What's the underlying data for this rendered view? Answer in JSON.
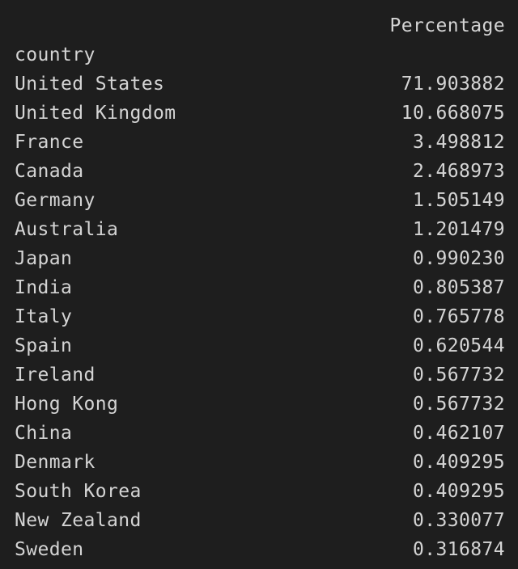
{
  "table": {
    "column_header": "Percentage",
    "index_name": "country",
    "rows": [
      {
        "country": "United States",
        "value": "71.903882"
      },
      {
        "country": "United Kingdom",
        "value": "10.668075"
      },
      {
        "country": "France",
        "value": "3.498812"
      },
      {
        "country": "Canada",
        "value": "2.468973"
      },
      {
        "country": "Germany",
        "value": "1.505149"
      },
      {
        "country": "Australia",
        "value": "1.201479"
      },
      {
        "country": "Japan",
        "value": "0.990230"
      },
      {
        "country": "India",
        "value": "0.805387"
      },
      {
        "country": "Italy",
        "value": "0.765778"
      },
      {
        "country": "Spain",
        "value": "0.620544"
      },
      {
        "country": "Ireland",
        "value": "0.567732"
      },
      {
        "country": "Hong Kong",
        "value": "0.567732"
      },
      {
        "country": "China",
        "value": "0.462107"
      },
      {
        "country": "Denmark",
        "value": "0.409295"
      },
      {
        "country": "South Korea",
        "value": "0.409295"
      },
      {
        "country": "New Zealand",
        "value": "0.330077"
      },
      {
        "country": "Sweden",
        "value": "0.316874"
      }
    ]
  }
}
